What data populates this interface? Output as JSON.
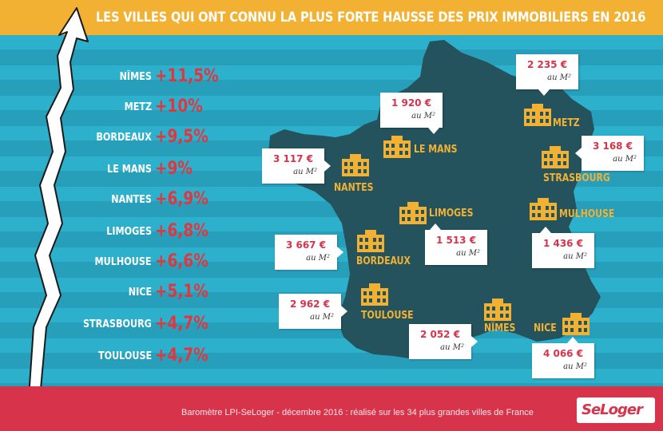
{
  "title": "LES VILLES QUI ONT CONNU LA PLUS FORTE HAUSSE DES PRIX IMMOBILIERS EN 2016",
  "colors": {
    "header": "#f2b132",
    "background": "#2aa9c5",
    "map": "#24535d",
    "accent_red": "#e2363f",
    "label_yellow": "#f2b132",
    "footer": "#d7334a"
  },
  "ranking": [
    {
      "city": "NÎMES",
      "change": "+11,5%"
    },
    {
      "city": "METZ",
      "change": "+10%"
    },
    {
      "city": "BORDEAUX",
      "change": "+9,5%"
    },
    {
      "city": "LE MANS",
      "change": "+9%"
    },
    {
      "city": "NANTES",
      "change": "+6,9%"
    },
    {
      "city": "LIMOGES",
      "change": "+6,8%"
    },
    {
      "city": "MULHOUSE",
      "change": "+6,6%"
    },
    {
      "city": "NICE",
      "change": "+5,1%"
    },
    {
      "city": "STRASBOURG",
      "change": "+4,7%"
    },
    {
      "city": "TOULOUSE",
      "change": "+4,7%"
    }
  ],
  "map": {
    "price_unit": "au M²",
    "cities": [
      {
        "key": "metz",
        "label": "METZ",
        "price": "2 235 €"
      },
      {
        "key": "lemans",
        "label": "LE MANS",
        "price": "1 920 €"
      },
      {
        "key": "nantes",
        "label": "NANTES",
        "price": "3 117 €"
      },
      {
        "key": "strasbourg",
        "label": "STRASBOURG",
        "price": "3 168 €"
      },
      {
        "key": "limoges",
        "label": "LIMOGES",
        "price": "1 513 €"
      },
      {
        "key": "mulhouse",
        "label": "MULHOUSE",
        "price": "1 436 €"
      },
      {
        "key": "bordeaux",
        "label": "BORDEAUX",
        "price": "3 667 €"
      },
      {
        "key": "toulouse",
        "label": "TOULOUSE",
        "price": "2 962 €"
      },
      {
        "key": "nimes",
        "label": "NÎMES",
        "price": "2 052 €"
      },
      {
        "key": "nice",
        "label": "NICE",
        "price": "4 066 €"
      }
    ]
  },
  "footer": {
    "note": "Baromètre LPI-SeLoger - décembre 2016 : réalisé sur les 34 plus grandes villes de France",
    "logo_text": "SeLoger"
  }
}
